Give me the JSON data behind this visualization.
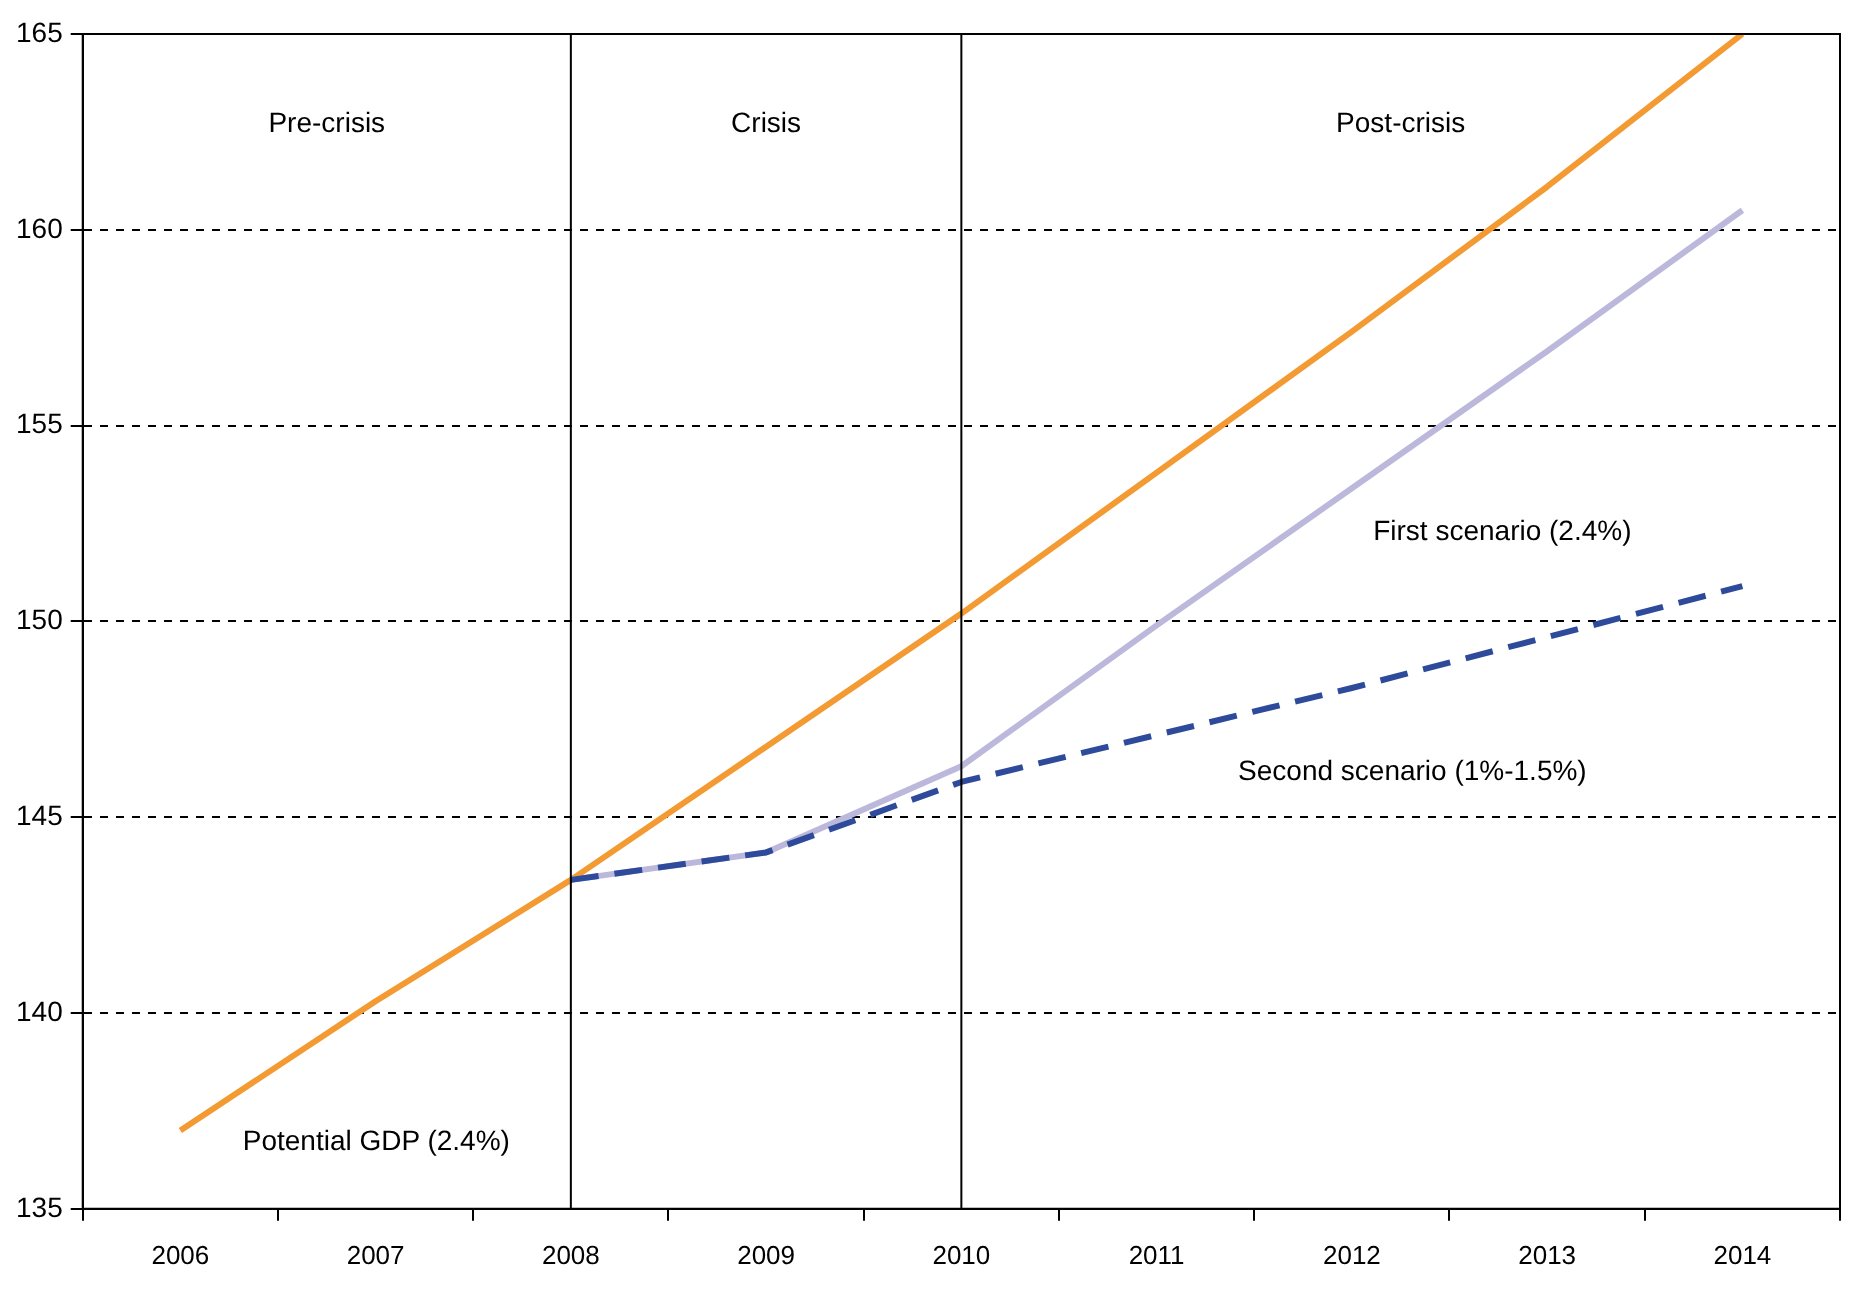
{
  "chart_data": {
    "type": "line",
    "categories": [
      "2006",
      "2007",
      "2008",
      "2009",
      "2010",
      "2011",
      "2012",
      "2013",
      "2014"
    ],
    "series": [
      {
        "name": "Potential GDP (2.4%)",
        "color": "#f39a32",
        "values": [
          137.0,
          140.3,
          143.4,
          146.8,
          150.2,
          153.8,
          157.4,
          161.1,
          165.0
        ]
      },
      {
        "name": "First scenario (2.4%)",
        "color": "#bcb8dc",
        "values": [
          null,
          null,
          143.4,
          144.1,
          146.3,
          149.9,
          153.4,
          156.9,
          160.5
        ]
      },
      {
        "name": "Second scenario (1%-1.5%)",
        "color": "#2e4a9a",
        "line_style": "dashed",
        "values": [
          null,
          null,
          143.4,
          144.1,
          145.9,
          147.1,
          148.3,
          149.6,
          150.9
        ]
      }
    ],
    "ylim": [
      135,
      165
    ],
    "yticks": [
      135,
      140,
      145,
      150,
      155,
      160,
      165
    ],
    "grid": "y",
    "legend": false,
    "marker": "none",
    "ref_lines": [
      {
        "axis": "x",
        "value": "2008",
        "color": "#000000"
      },
      {
        "axis": "x",
        "value": "2010",
        "color": "#000000"
      }
    ],
    "annotations": [
      "Pre-crisis",
      "Crisis",
      "Post-crisis"
    ]
  }
}
